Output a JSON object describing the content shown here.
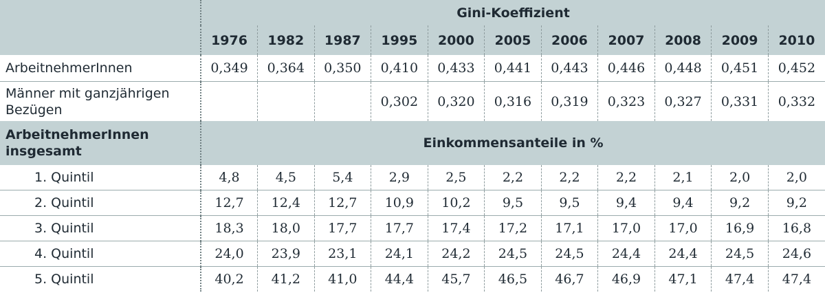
{
  "gini_title": "Gini-Koeffizient",
  "shares_title": "Einkommensanteile in %",
  "years": [
    "1976",
    "1982",
    "1987",
    "1995",
    "2000",
    "2005",
    "2006",
    "2007",
    "2008",
    "2009",
    "2010"
  ],
  "gini_rows": [
    {
      "label": "ArbeitnehmerInnen",
      "values": [
        "0,349",
        "0,364",
        "0,350",
        "0,410",
        "0,433",
        "0,441",
        "0,443",
        "0,446",
        "0,448",
        "0,451",
        "0,452"
      ]
    },
    {
      "label": "Männer mit ganzjährigen Bezügen",
      "values": [
        "",
        "",
        "",
        "0,302",
        "0,320",
        "0,316",
        "0,319",
        "0,323",
        "0,327",
        "0,331",
        "0,332"
      ]
    }
  ],
  "shares_section_label": "ArbeitnehmerInnen insgesamt",
  "quintile_rows": [
    {
      "label": "1. Quintil",
      "values": [
        "4,8",
        "4,5",
        "5,4",
        "2,9",
        "2,5",
        "2,2",
        "2,2",
        "2,2",
        "2,1",
        "2,0",
        "2,0"
      ]
    },
    {
      "label": "2. Quintil",
      "values": [
        "12,7",
        "12,4",
        "12,7",
        "10,9",
        "10,2",
        "9,5",
        "9,5",
        "9,4",
        "9,4",
        "9,2",
        "9,2"
      ]
    },
    {
      "label": "3. Quintil",
      "values": [
        "18,3",
        "18,0",
        "17,7",
        "17,7",
        "17,4",
        "17,2",
        "17,1",
        "17,0",
        "17,0",
        "16,9",
        "16,8"
      ]
    },
    {
      "label": "4. Quintil",
      "values": [
        "24,0",
        "23,9",
        "23,1",
        "24,1",
        "24,2",
        "24,5",
        "24,5",
        "24,4",
        "24,4",
        "24,5",
        "24,6"
      ]
    },
    {
      "label": "5. Quintil",
      "values": [
        "40,2",
        "41,2",
        "41,0",
        "44,4",
        "45,7",
        "46,5",
        "46,7",
        "46,9",
        "47,1",
        "47,4",
        "47,4"
      ]
    }
  ]
}
